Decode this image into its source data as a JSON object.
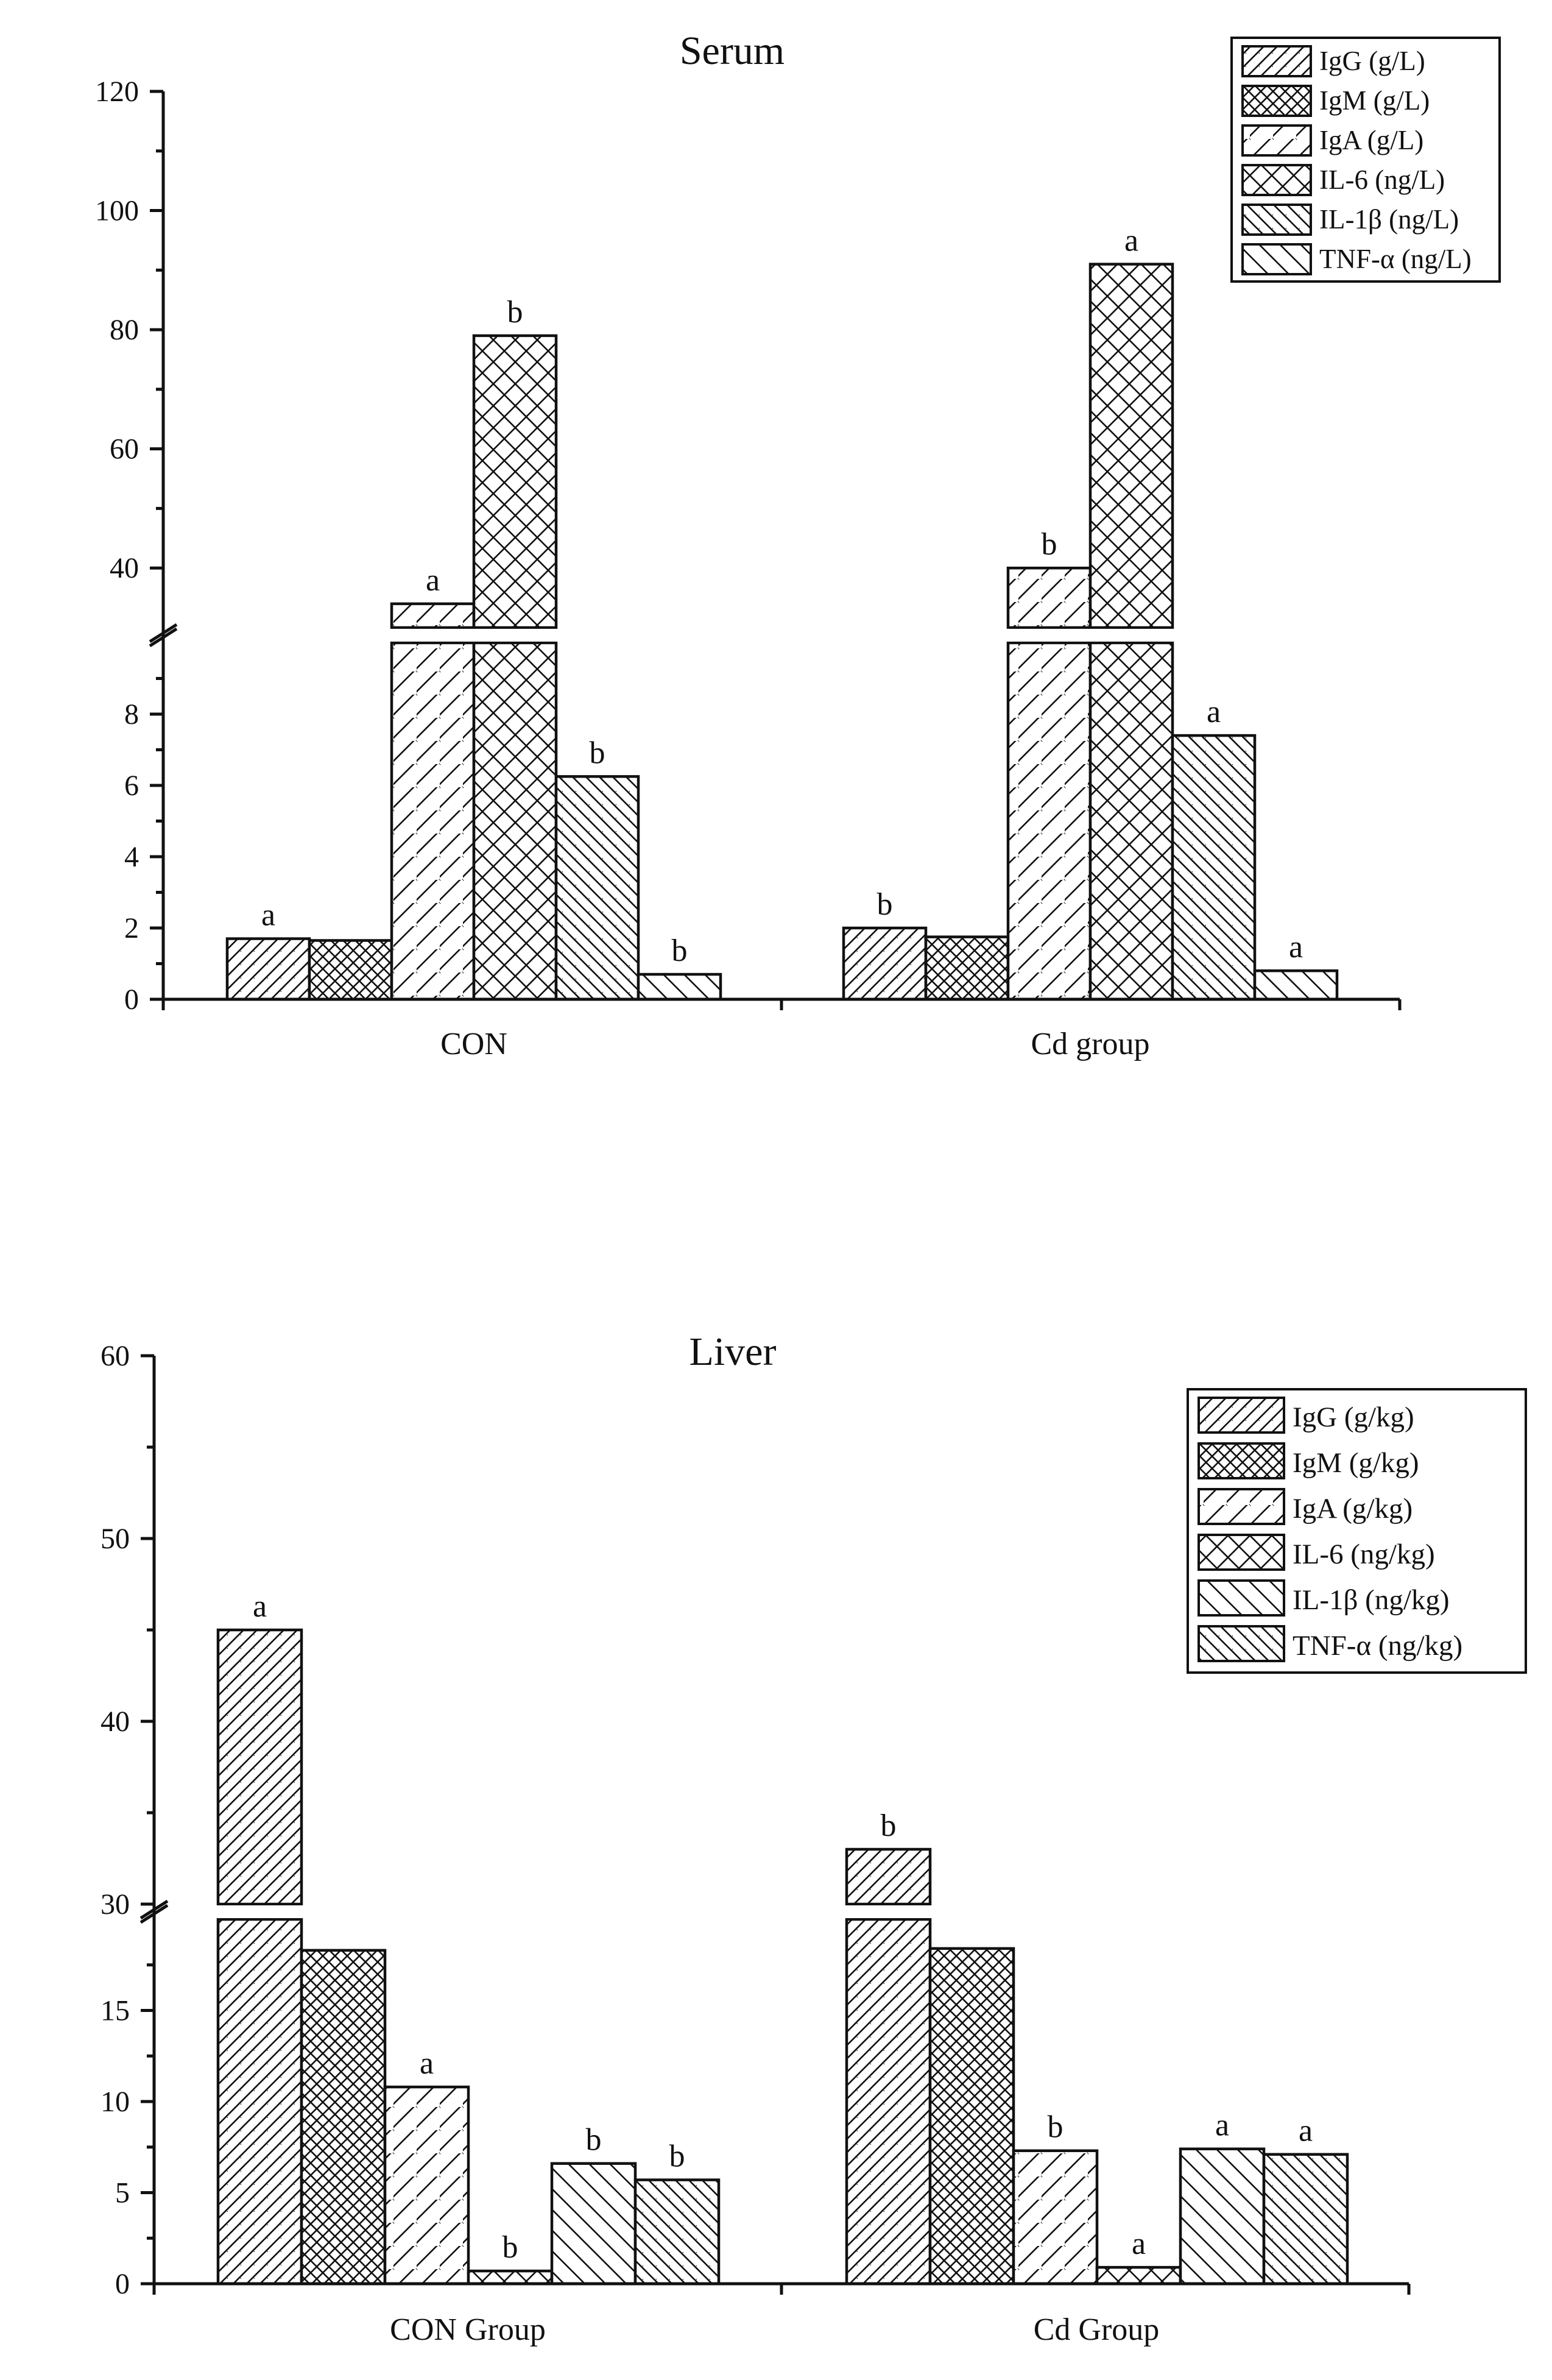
{
  "chart_data": [
    {
      "type": "bar",
      "title": "Serum",
      "categories": [
        "CON",
        "Cd group"
      ],
      "xlabel": "",
      "ylabel": "",
      "y_axis_break": {
        "lower_range": [
          0,
          10
        ],
        "upper_range": [
          30,
          120
        ]
      },
      "yticks_lower": [
        "0",
        "2",
        "4",
        "6",
        "8"
      ],
      "yticks_upper": [
        "40",
        "60",
        "80",
        "100",
        "120"
      ],
      "legend_position": "top-right",
      "series": [
        {
          "name": "IgG (g/L)",
          "pattern": "diag-right",
          "values": [
            1.7,
            2.0
          ],
          "labels": [
            "a",
            "b"
          ]
        },
        {
          "name": "IgM (g/L)",
          "pattern": "crosshatch-dense",
          "values": [
            1.65,
            1.75
          ],
          "labels": [
            "",
            ""
          ]
        },
        {
          "name": "IgA   (g/L)",
          "pattern": "diag-right-sparse",
          "values": [
            34.0,
            40.0
          ],
          "labels": [
            "a",
            "b"
          ]
        },
        {
          "name": "IL-6 (ng/L)",
          "pattern": "crosshatch-sparse",
          "values": [
            79.0,
            91.0
          ],
          "labels": [
            "b",
            "a"
          ]
        },
        {
          "name": "IL-1β (ng/L)",
          "pattern": "diag-left-dense",
          "values": [
            6.25,
            7.4
          ],
          "labels": [
            "b",
            "a"
          ]
        },
        {
          "name": "TNF-α (ng/L)",
          "pattern": "diag-left-sparse",
          "values": [
            0.7,
            0.8
          ],
          "labels": [
            "b",
            "a"
          ]
        }
      ]
    },
    {
      "type": "bar",
      "title": "Liver",
      "categories": [
        "CON Group",
        "Cd Group"
      ],
      "xlabel": "",
      "ylabel": "",
      "y_axis_break": {
        "lower_range": [
          0,
          20
        ],
        "upper_range": [
          30,
          60
        ]
      },
      "yticks_lower": [
        "0",
        "5",
        "10",
        "15"
      ],
      "yticks_upper": [
        "30",
        "40",
        "50",
        "60"
      ],
      "legend_position": "top-right",
      "series": [
        {
          "name": "IgG (g/kg)",
          "pattern": "diag-right",
          "values": [
            45.0,
            33.0
          ],
          "labels": [
            "a",
            "b"
          ]
        },
        {
          "name": "IgM (g/kg)",
          "pattern": "crosshatch-dense",
          "values": [
            18.3,
            18.4
          ],
          "labels": [
            "",
            ""
          ]
        },
        {
          "name": "IgA   (g/kg)",
          "pattern": "diag-right-sparse",
          "values": [
            10.8,
            7.3
          ],
          "labels": [
            "a",
            "b"
          ]
        },
        {
          "name": "IL-6 (ng/kg)",
          "pattern": "crosshatch-sparse",
          "values": [
            0.7,
            0.9
          ],
          "labels": [
            "b",
            "a"
          ]
        },
        {
          "name": "IL-1β (ng/kg)",
          "pattern": "diag-left-sparse",
          "values": [
            6.6,
            7.4
          ],
          "labels": [
            "b",
            "a"
          ]
        },
        {
          "name": "TNF-α (ng/kg)",
          "pattern": "diag-left-dense",
          "values": [
            5.7,
            7.1
          ],
          "labels": [
            "b",
            "a"
          ]
        }
      ]
    }
  ]
}
